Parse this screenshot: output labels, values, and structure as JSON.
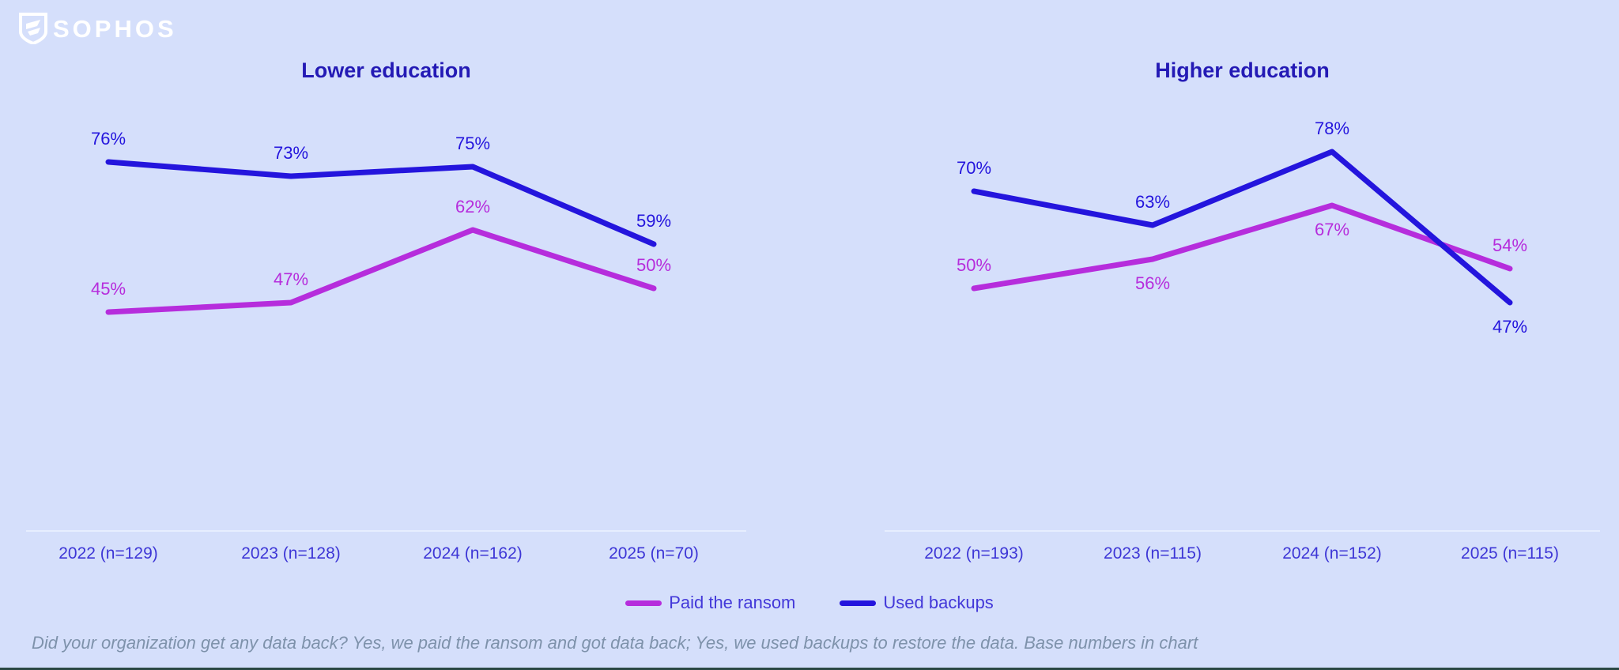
{
  "logo": {
    "text": "SOPHOS"
  },
  "chart_data": [
    {
      "type": "line",
      "title": "Lower education",
      "categories": [
        "2022 (n=129)",
        "2023 (n=128)",
        "2024 (n=162)",
        "2025 (n=70)"
      ],
      "series": [
        {
          "name": "Paid the ransom",
          "color": "#b62ddc",
          "values": [
            45,
            47,
            62,
            50
          ],
          "labels": [
            "45%",
            "47%",
            "62%",
            "50%"
          ],
          "label_sides": [
            "above",
            "above",
            "above",
            "above"
          ]
        },
        {
          "name": "Used backups",
          "color": "#2415dd",
          "values": [
            76,
            73,
            75,
            59
          ],
          "labels": [
            "76%",
            "73%",
            "75%",
            "59%"
          ],
          "label_sides": [
            "above",
            "above",
            "above",
            "above"
          ]
        }
      ],
      "xlabel": "",
      "ylabel": "",
      "ylim": [
        0,
        100
      ],
      "grid": false,
      "legend_position": "bottom"
    },
    {
      "type": "line",
      "title": "Higher education",
      "categories": [
        "2022 (n=193)",
        "2023 (n=115)",
        "2024 (n=152)",
        "2025 (n=115)"
      ],
      "series": [
        {
          "name": "Paid the ransom",
          "color": "#b62ddc",
          "values": [
            50,
            56,
            67,
            54
          ],
          "labels": [
            "50%",
            "56%",
            "67%",
            "54%"
          ],
          "label_sides": [
            "above",
            "below",
            "below",
            "above"
          ]
        },
        {
          "name": "Used backups",
          "color": "#2415dd",
          "values": [
            70,
            63,
            78,
            47
          ],
          "labels": [
            "70%",
            "63%",
            "78%",
            "47%"
          ],
          "label_sides": [
            "above",
            "above",
            "above",
            "below"
          ]
        }
      ],
      "xlabel": "",
      "ylabel": "",
      "ylim": [
        0,
        100
      ],
      "grid": false,
      "legend_position": "bottom"
    }
  ],
  "legend": [
    {
      "label": "Paid the ransom",
      "color": "#b62ddc"
    },
    {
      "label": "Used backups",
      "color": "#2415dd"
    }
  ],
  "caption": {
    "text": "Did your organization get any data back? Yes, we paid the ransom and got data back; Yes, we used backups to restore the data. Base numbers in chart"
  },
  "colors": {
    "background": "#d5dffb",
    "title": "#241ab5",
    "axis_label": "#3d36d6",
    "axis_line": "#e7eefe",
    "legend_text": "#4338d9",
    "caption": "#7e92ab",
    "bottom_edge": "#2b4844",
    "logo": "#ffffff"
  }
}
